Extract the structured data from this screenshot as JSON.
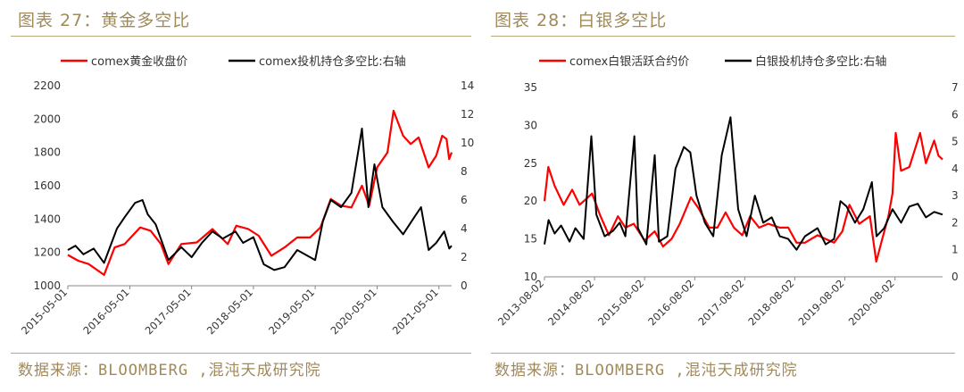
{
  "colors": {
    "accent": "#a08a5c",
    "series_red": "#ff0000",
    "series_black": "#000000"
  },
  "chart_data": [
    {
      "type": "line",
      "title": "图表 27：黄金多空比",
      "source": "数据来源：BLOOMBERG ,混沌天成研究院",
      "x_tick_labels": [
        "2015-05-01",
        "2016-05-01",
        "2017-05-01",
        "2018-05-01",
        "2019-05-01",
        "2020-05-01",
        "2021-05-01"
      ],
      "x_range": [
        "2015-05-01",
        "2021-07-15"
      ],
      "y_left": {
        "ticks": [
          "1000",
          "1200",
          "1400",
          "1600",
          "1800",
          "2000",
          "2200"
        ],
        "range": [
          1000,
          2200
        ]
      },
      "y_right": {
        "ticks": [
          "0",
          "2",
          "4",
          "6",
          "8",
          "10",
          "12",
          "14"
        ],
        "range": [
          0,
          14
        ]
      },
      "legend_position": "top",
      "grid": false,
      "series": [
        {
          "name": "comex黄金收盘价",
          "axis": "left",
          "color": "#ff0000",
          "points": [
            [
              "2015-05-01",
              1185
            ],
            [
              "2015-07-01",
              1150
            ],
            [
              "2015-09-01",
              1130
            ],
            [
              "2015-12-01",
              1065
            ],
            [
              "2016-02-01",
              1230
            ],
            [
              "2016-04-01",
              1250
            ],
            [
              "2016-07-01",
              1350
            ],
            [
              "2016-09-01",
              1330
            ],
            [
              "2016-11-01",
              1250
            ],
            [
              "2016-12-15",
              1130
            ],
            [
              "2017-03-01",
              1250
            ],
            [
              "2017-06-01",
              1260
            ],
            [
              "2017-09-01",
              1340
            ],
            [
              "2017-12-01",
              1250
            ],
            [
              "2018-01-20",
              1360
            ],
            [
              "2018-04-01",
              1340
            ],
            [
              "2018-06-01",
              1300
            ],
            [
              "2018-08-15",
              1180
            ],
            [
              "2018-11-01",
              1230
            ],
            [
              "2019-01-15",
              1290
            ],
            [
              "2019-04-01",
              1290
            ],
            [
              "2019-06-01",
              1350
            ],
            [
              "2019-08-01",
              1520
            ],
            [
              "2019-10-01",
              1480
            ],
            [
              "2019-12-01",
              1470
            ],
            [
              "2020-02-01",
              1600
            ],
            [
              "2020-03-15",
              1480
            ],
            [
              "2020-05-01",
              1710
            ],
            [
              "2020-07-01",
              1800
            ],
            [
              "2020-08-06",
              2050
            ],
            [
              "2020-10-01",
              1900
            ],
            [
              "2020-11-15",
              1850
            ],
            [
              "2021-01-01",
              1890
            ],
            [
              "2021-03-01",
              1710
            ],
            [
              "2021-04-15",
              1780
            ],
            [
              "2021-05-20",
              1900
            ],
            [
              "2021-06-15",
              1880
            ],
            [
              "2021-06-30",
              1760
            ],
            [
              "2021-07-15",
              1800
            ]
          ]
        },
        {
          "name": "comex投机持仓多空比:右轴",
          "axis": "right",
          "color": "#000000",
          "points": [
            [
              "2015-05-01",
              2.5
            ],
            [
              "2015-06-15",
              2.8
            ],
            [
              "2015-08-01",
              2.2
            ],
            [
              "2015-10-01",
              2.6
            ],
            [
              "2015-12-01",
              1.6
            ],
            [
              "2016-02-15",
              4.0
            ],
            [
              "2016-04-01",
              4.8
            ],
            [
              "2016-06-01",
              5.8
            ],
            [
              "2016-07-15",
              6.0
            ],
            [
              "2016-08-15",
              5.0
            ],
            [
              "2016-10-01",
              4.3
            ],
            [
              "2016-12-15",
              1.8
            ],
            [
              "2017-03-01",
              2.7
            ],
            [
              "2017-05-01",
              2.0
            ],
            [
              "2017-07-01",
              3.0
            ],
            [
              "2017-09-01",
              3.8
            ],
            [
              "2017-11-01",
              3.3
            ],
            [
              "2018-01-15",
              3.8
            ],
            [
              "2018-03-01",
              3.0
            ],
            [
              "2018-05-01",
              3.4
            ],
            [
              "2018-07-01",
              1.5
            ],
            [
              "2018-09-01",
              1.1
            ],
            [
              "2018-11-01",
              1.3
            ],
            [
              "2019-01-15",
              2.5
            ],
            [
              "2019-03-01",
              2.2
            ],
            [
              "2019-05-01",
              1.8
            ],
            [
              "2019-06-15",
              4.5
            ],
            [
              "2019-08-01",
              6.0
            ],
            [
              "2019-10-01",
              5.5
            ],
            [
              "2019-12-01",
              6.5
            ],
            [
              "2020-02-01",
              11.0
            ],
            [
              "2020-03-10",
              5.5
            ],
            [
              "2020-04-15",
              8.5
            ],
            [
              "2020-06-01",
              5.5
            ],
            [
              "2020-08-01",
              4.5
            ],
            [
              "2020-10-01",
              3.6
            ],
            [
              "2020-12-01",
              4.7
            ],
            [
              "2021-01-15",
              5.5
            ],
            [
              "2021-03-01",
              2.5
            ],
            [
              "2021-04-15",
              3.0
            ],
            [
              "2021-06-01",
              3.8
            ],
            [
              "2021-07-01",
              2.6
            ],
            [
              "2021-07-15",
              2.8
            ]
          ]
        }
      ]
    },
    {
      "type": "line",
      "title": "图表 28：白银多空比",
      "source": "数据来源：BLOOMBERG ,混沌天成研究院",
      "x_tick_labels": [
        "2013-08-02",
        "2014-08-02",
        "2015-08-02",
        "2016-08-02",
        "2017-08-02",
        "2018-08-02",
        "2019-08-02",
        "2020-08-02"
      ],
      "x_range": [
        "2013-08-02",
        "2021-07-15"
      ],
      "y_left": {
        "ticks": [
          "10",
          "15",
          "20",
          "25",
          "30",
          "35"
        ],
        "range": [
          10,
          35
        ]
      },
      "y_right": {
        "ticks": [
          "0",
          "1",
          "2",
          "3",
          "4",
          "5",
          "6",
          "7"
        ],
        "range": [
          0,
          7
        ]
      },
      "legend_position": "top",
      "grid": false,
      "series": [
        {
          "name": "comex白银活跃合约价",
          "axis": "left",
          "color": "#ff0000",
          "points": [
            [
              "2013-08-02",
              20
            ],
            [
              "2013-08-30",
              24.5
            ],
            [
              "2013-10-15",
              22
            ],
            [
              "2013-12-20",
              19.5
            ],
            [
              "2014-02-20",
              21.5
            ],
            [
              "2014-04-15",
              19.5
            ],
            [
              "2014-06-15",
              20.5
            ],
            [
              "2014-07-15",
              21
            ],
            [
              "2014-09-15",
              18
            ],
            [
              "2014-11-15",
              15.5
            ],
            [
              "2015-01-20",
              18
            ],
            [
              "2015-03-15",
              16.5
            ],
            [
              "2015-05-15",
              17
            ],
            [
              "2015-08-02",
              14.8
            ],
            [
              "2015-10-15",
              16
            ],
            [
              "2015-12-15",
              14
            ],
            [
              "2016-02-15",
              15
            ],
            [
              "2016-04-15",
              17
            ],
            [
              "2016-07-05",
              20.5
            ],
            [
              "2016-09-01",
              19
            ],
            [
              "2016-11-15",
              16.5
            ],
            [
              "2017-01-15",
              16.5
            ],
            [
              "2017-03-15",
              18.5
            ],
            [
              "2017-05-15",
              16.5
            ],
            [
              "2017-07-15",
              15.5
            ],
            [
              "2017-09-10",
              18
            ],
            [
              "2017-11-15",
              16.5
            ],
            [
              "2018-01-20",
              17
            ],
            [
              "2018-04-15",
              16.5
            ],
            [
              "2018-06-15",
              16.5
            ],
            [
              "2018-08-15",
              14.5
            ],
            [
              "2018-10-15",
              14.5
            ],
            [
              "2019-01-15",
              15.5
            ],
            [
              "2019-03-15",
              15
            ],
            [
              "2019-05-15",
              14.5
            ],
            [
              "2019-07-15",
              16
            ],
            [
              "2019-09-05",
              19.5
            ],
            [
              "2019-11-15",
              17
            ],
            [
              "2020-02-01",
              18
            ],
            [
              "2020-03-18",
              12
            ],
            [
              "2020-05-01",
              15
            ],
            [
              "2020-06-15",
              18
            ],
            [
              "2020-07-15",
              21
            ],
            [
              "2020-08-07",
              29
            ],
            [
              "2020-09-15",
              24
            ],
            [
              "2020-11-15",
              24.5
            ],
            [
              "2021-02-01",
              29
            ],
            [
              "2021-03-15",
              25
            ],
            [
              "2021-05-15",
              28
            ],
            [
              "2021-06-15",
              26
            ],
            [
              "2021-07-15",
              25.5
            ]
          ]
        },
        {
          "name": "白银投机持仓多空比:右轴",
          "axis": "right",
          "color": "#000000",
          "points": [
            [
              "2013-08-02",
              1.2
            ],
            [
              "2013-09-01",
              2.1
            ],
            [
              "2013-10-15",
              1.6
            ],
            [
              "2013-12-01",
              1.9
            ],
            [
              "2014-02-01",
              1.3
            ],
            [
              "2014-03-15",
              1.8
            ],
            [
              "2014-05-15",
              1.4
            ],
            [
              "2014-07-10",
              5.2
            ],
            [
              "2014-08-15",
              2.3
            ],
            [
              "2014-10-15",
              1.5
            ],
            [
              "2014-12-15",
              1.7
            ],
            [
              "2015-02-01",
              2.0
            ],
            [
              "2015-03-15",
              1.5
            ],
            [
              "2015-05-20",
              5.2
            ],
            [
              "2015-06-15",
              1.8
            ],
            [
              "2015-08-15",
              1.2
            ],
            [
              "2015-10-15",
              4.5
            ],
            [
              "2015-11-15",
              1.3
            ],
            [
              "2016-01-15",
              1.5
            ],
            [
              "2016-03-15",
              4.0
            ],
            [
              "2016-05-15",
              4.8
            ],
            [
              "2016-07-01",
              4.6
            ],
            [
              "2016-08-15",
              3.0
            ],
            [
              "2016-10-15",
              2.0
            ],
            [
              "2016-12-15",
              1.5
            ],
            [
              "2017-02-15",
              4.5
            ],
            [
              "2017-04-20",
              5.9
            ],
            [
              "2017-06-15",
              2.5
            ],
            [
              "2017-08-15",
              1.5
            ],
            [
              "2017-10-15",
              3.0
            ],
            [
              "2017-12-15",
              2.0
            ],
            [
              "2018-02-15",
              2.2
            ],
            [
              "2018-04-15",
              1.5
            ],
            [
              "2018-06-15",
              1.4
            ],
            [
              "2018-08-15",
              1.0
            ],
            [
              "2018-10-15",
              1.5
            ],
            [
              "2019-01-15",
              1.8
            ],
            [
              "2019-03-15",
              1.2
            ],
            [
              "2019-05-15",
              1.4
            ],
            [
              "2019-07-01",
              2.8
            ],
            [
              "2019-08-15",
              2.6
            ],
            [
              "2019-10-15",
              2.0
            ],
            [
              "2019-12-15",
              2.5
            ],
            [
              "2020-02-15",
              3.5
            ],
            [
              "2020-03-20",
              1.5
            ],
            [
              "2020-05-15",
              1.8
            ],
            [
              "2020-07-15",
              2.5
            ],
            [
              "2020-09-15",
              2.0
            ],
            [
              "2020-11-15",
              2.6
            ],
            [
              "2021-01-15",
              2.7
            ],
            [
              "2021-03-15",
              2.2
            ],
            [
              "2021-05-15",
              2.4
            ],
            [
              "2021-07-15",
              2.3
            ]
          ]
        }
      ]
    }
  ]
}
